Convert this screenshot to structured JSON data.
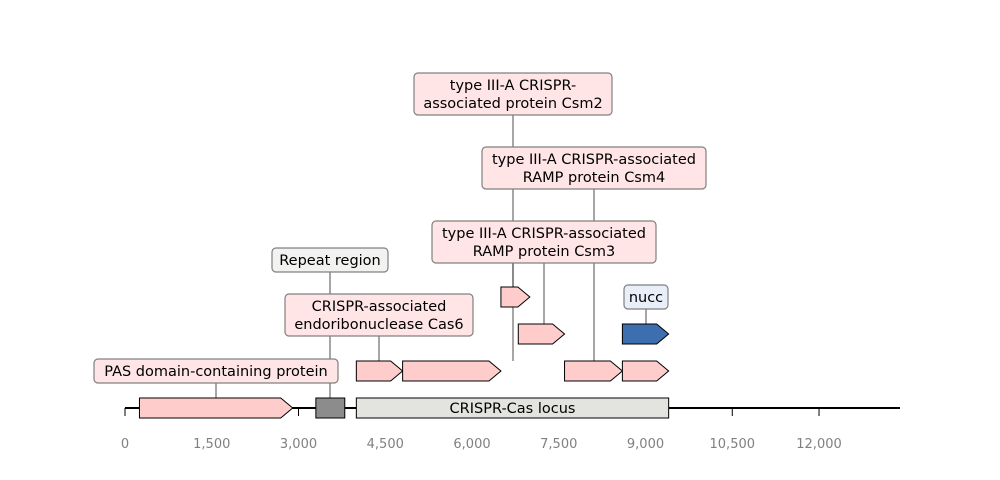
{
  "chart_data": {
    "type": "gene-map",
    "xlim": [
      0,
      13400
    ],
    "ticks": [
      {
        "value": 0,
        "label": "0"
      },
      {
        "value": 1500,
        "label": "1,500"
      },
      {
        "value": 3000,
        "label": "3,000"
      },
      {
        "value": 4500,
        "label": "4,500"
      },
      {
        "value": 6000,
        "label": "6,000"
      },
      {
        "value": 7500,
        "label": "7,500"
      },
      {
        "value": 9000,
        "label": "9,000"
      },
      {
        "value": 10500,
        "label": "10,500"
      },
      {
        "value": 12000,
        "label": "12,000"
      }
    ],
    "track": {
      "start": 0,
      "end": 13400
    },
    "region": {
      "label": "CRISPR-Cas locus",
      "start": 4000,
      "end": 9400,
      "color": "#e3e3df"
    },
    "repeat": {
      "start": 3300,
      "end": 3800,
      "color": "#8c8c8c"
    },
    "features": [
      {
        "id": "pas",
        "start": 250,
        "end": 2900,
        "lane": 0,
        "color": "#ffcccc"
      },
      {
        "id": "cas6",
        "start": 4000,
        "end": 4800,
        "lane": 1,
        "color": "#ffcccc"
      },
      {
        "id": "csm2",
        "start": 4800,
        "end": 6500,
        "lane": 1,
        "color": "#ffcccc"
      },
      {
        "id": "csm4",
        "start": 7600,
        "end": 8600,
        "lane": 1,
        "color": "#ffcccc"
      },
      {
        "id": "f5",
        "start": 8600,
        "end": 9400,
        "lane": 1,
        "color": "#ffcccc"
      },
      {
        "id": "f6",
        "start": 6800,
        "end": 7600,
        "lane": 2,
        "color": "#ffcccc"
      },
      {
        "id": "nucc",
        "start": 8600,
        "end": 9400,
        "lane": 2,
        "color": "#3d6eb0"
      },
      {
        "id": "f8",
        "start": 6500,
        "end": 7000,
        "lane": 3,
        "color": "#ffcccc"
      }
    ],
    "annotations": [
      {
        "text": "PAS domain-containing protein",
        "color": "#ffe5e5"
      },
      {
        "text": "Repeat region",
        "color": "#f2f2f0"
      },
      {
        "text": "CRISPR-associated\nendoribonuclease Cas6",
        "color": "#ffe5e5"
      },
      {
        "text": "type III-A CRISPR-\nassociated protein Csm2",
        "color": "#ffe5e5"
      },
      {
        "text": "type III-A CRISPR-associated\nRAMP protein Csm4",
        "color": "#ffe5e5"
      },
      {
        "text": "type III-A CRISPR-associated\nRAMP protein Csm3",
        "color": "#ffe5e5"
      },
      {
        "text": "nucc",
        "color": "#e8eff8"
      }
    ]
  }
}
